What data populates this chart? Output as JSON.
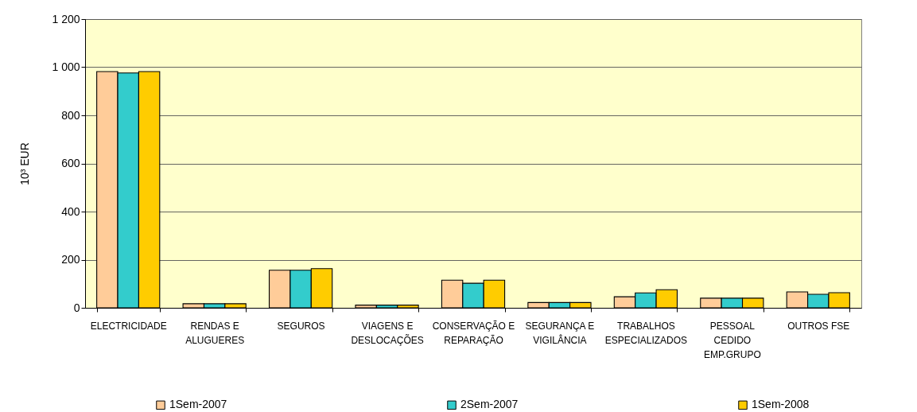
{
  "chart_data": {
    "type": "bar",
    "ylabel": "10³ EUR",
    "categories": [
      "ELECTRICIDADE",
      "RENDAS E ALUGUERES",
      "SEGUROS",
      "VIAGENS E DESLOCAÇÕES",
      "CONSERVAÇÃO E REPARAÇÃO",
      "SEGURANÇA E VIGILÂNCIA",
      "TRABALHOS ESPECIALIZADOS",
      "PESSOAL CEDIDO EMP.GRUPO",
      "OUTROS FSE"
    ],
    "series": [
      {
        "name": "1Sem-2007",
        "color": "#ffcc99",
        "values": [
          982,
          17,
          156,
          11,
          115,
          22,
          46,
          40,
          66
        ]
      },
      {
        "name": "2Sem-2007",
        "color": "#33cccc",
        "values": [
          976,
          17,
          156,
          11,
          102,
          22,
          62,
          40,
          56
        ]
      },
      {
        "name": "1Sem-2008",
        "color": "#ffcc00",
        "values": [
          982,
          17,
          163,
          11,
          115,
          22,
          75,
          40,
          63
        ]
      }
    ],
    "ylim": [
      0,
      1200
    ],
    "yticks": [
      0,
      200,
      400,
      600,
      800,
      {
        "value": 1000,
        "label": "1 000"
      },
      {
        "value": 1200,
        "label": "1 200"
      }
    ],
    "grid": "y",
    "legend": "bottom"
  }
}
